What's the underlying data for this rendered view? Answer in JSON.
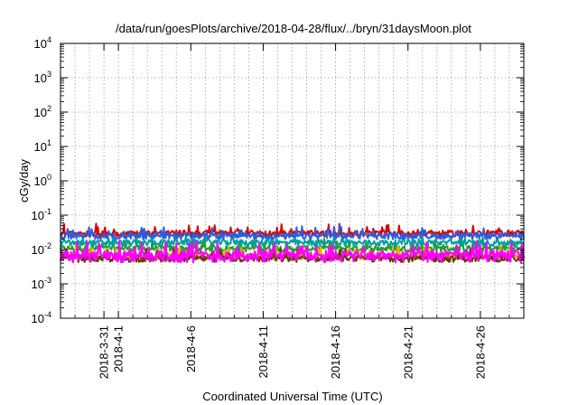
{
  "chart_data": {
    "type": "line",
    "title": "/data/run/goesPlots/archive/2018-04-28/flux/../bryn/31daysMoon.plot",
    "xlabel": "Coordinated Universal Time (UTC)",
    "ylabel": "cGy/day",
    "y_scale": "log",
    "ylim": [
      0.0001,
      10000
    ],
    "y_ticks": [
      {
        "value": 0.0001,
        "base": "10",
        "exp": "-4"
      },
      {
        "value": 0.001,
        "base": "10",
        "exp": "-3"
      },
      {
        "value": 0.01,
        "base": "10",
        "exp": "-2"
      },
      {
        "value": 0.1,
        "base": "10",
        "exp": "-1"
      },
      {
        "value": 1,
        "base": "10",
        "exp": "0"
      },
      {
        "value": 10,
        "base": "10",
        "exp": "1"
      },
      {
        "value": 100,
        "base": "10",
        "exp": "2"
      },
      {
        "value": 1000,
        "base": "10",
        "exp": "3"
      },
      {
        "value": 10000,
        "base": "10",
        "exp": "4"
      }
    ],
    "xlim": [
      "2018-03-28",
      "2018-04-29"
    ],
    "x_ticks": [
      "2018-3-31",
      "2018-4-1",
      "2018-4-6",
      "2018-4-11",
      "2018-4-16",
      "2018-4-21",
      "2018-4-26"
    ],
    "x_minor_ticks": [
      "2018-3-29",
      "2018-3-30",
      "2018-4-2",
      "2018-4-3",
      "2018-4-4",
      "2018-4-5",
      "2018-4-7",
      "2018-4-8",
      "2018-4-9",
      "2018-4-10",
      "2018-4-12",
      "2018-4-13",
      "2018-4-14",
      "2018-4-15",
      "2018-4-17",
      "2018-4-18",
      "2018-4-19",
      "2018-4-20",
      "2018-4-22",
      "2018-4-23",
      "2018-4-24",
      "2018-4-25",
      "2018-4-27",
      "2018-4-28"
    ],
    "x_tick_labels_stacked": [
      "2018-3-31",
      "2018-4-1"
    ],
    "grid": true,
    "series": [
      {
        "color": "#e00000",
        "x": [
          "2018-03-28",
          "2018-04-02",
          "2018-04-07",
          "2018-04-12",
          "2018-04-17",
          "2018-04-22",
          "2018-04-29"
        ],
        "y": [
          0.03,
          0.03,
          0.031,
          0.03,
          0.03,
          0.03,
          0.031
        ]
      },
      {
        "color": "#2a5fdc",
        "x": [
          "2018-03-28",
          "2018-04-02",
          "2018-04-07",
          "2018-04-12",
          "2018-04-17",
          "2018-04-22",
          "2018-04-29"
        ],
        "y": [
          0.026,
          0.025,
          0.026,
          0.025,
          0.026,
          0.025,
          0.026
        ]
      },
      {
        "color": "#00a0a0",
        "x": [
          "2018-03-28",
          "2018-04-02",
          "2018-04-07",
          "2018-04-12",
          "2018-04-17",
          "2018-04-22",
          "2018-04-29"
        ],
        "y": [
          0.016,
          0.016,
          0.017,
          0.016,
          0.016,
          0.016,
          0.016
        ]
      },
      {
        "color": "#2a9a2a",
        "x": [
          "2018-03-28",
          "2018-04-02",
          "2018-04-07",
          "2018-04-12",
          "2018-04-17",
          "2018-04-22",
          "2018-04-29"
        ],
        "y": [
          0.011,
          0.011,
          0.011,
          0.011,
          0.011,
          0.011,
          0.011
        ]
      },
      {
        "color": "#d8b400",
        "x": [
          "2018-03-28",
          "2018-04-02",
          "2018-04-07",
          "2018-04-12",
          "2018-04-17",
          "2018-04-22",
          "2018-04-29"
        ],
        "y": [
          0.0065,
          0.0065,
          0.0066,
          0.0065,
          0.0065,
          0.0065,
          0.0066
        ]
      },
      {
        "color": "#6a3a00",
        "x": [
          "2018-03-28",
          "2018-04-02",
          "2018-04-07",
          "2018-04-12",
          "2018-04-17",
          "2018-04-22",
          "2018-04-29"
        ],
        "y": [
          0.0055,
          0.0055,
          0.0056,
          0.0055,
          0.0055,
          0.0055,
          0.0056
        ]
      },
      {
        "color": "#ff00ff",
        "x": [
          "2018-03-28",
          "2018-04-02",
          "2018-04-07",
          "2018-04-12",
          "2018-04-17",
          "2018-04-22",
          "2018-04-29"
        ],
        "y": [
          0.0068,
          0.0067,
          0.0068,
          0.0067,
          0.0068,
          0.0067,
          0.0068
        ]
      }
    ]
  }
}
